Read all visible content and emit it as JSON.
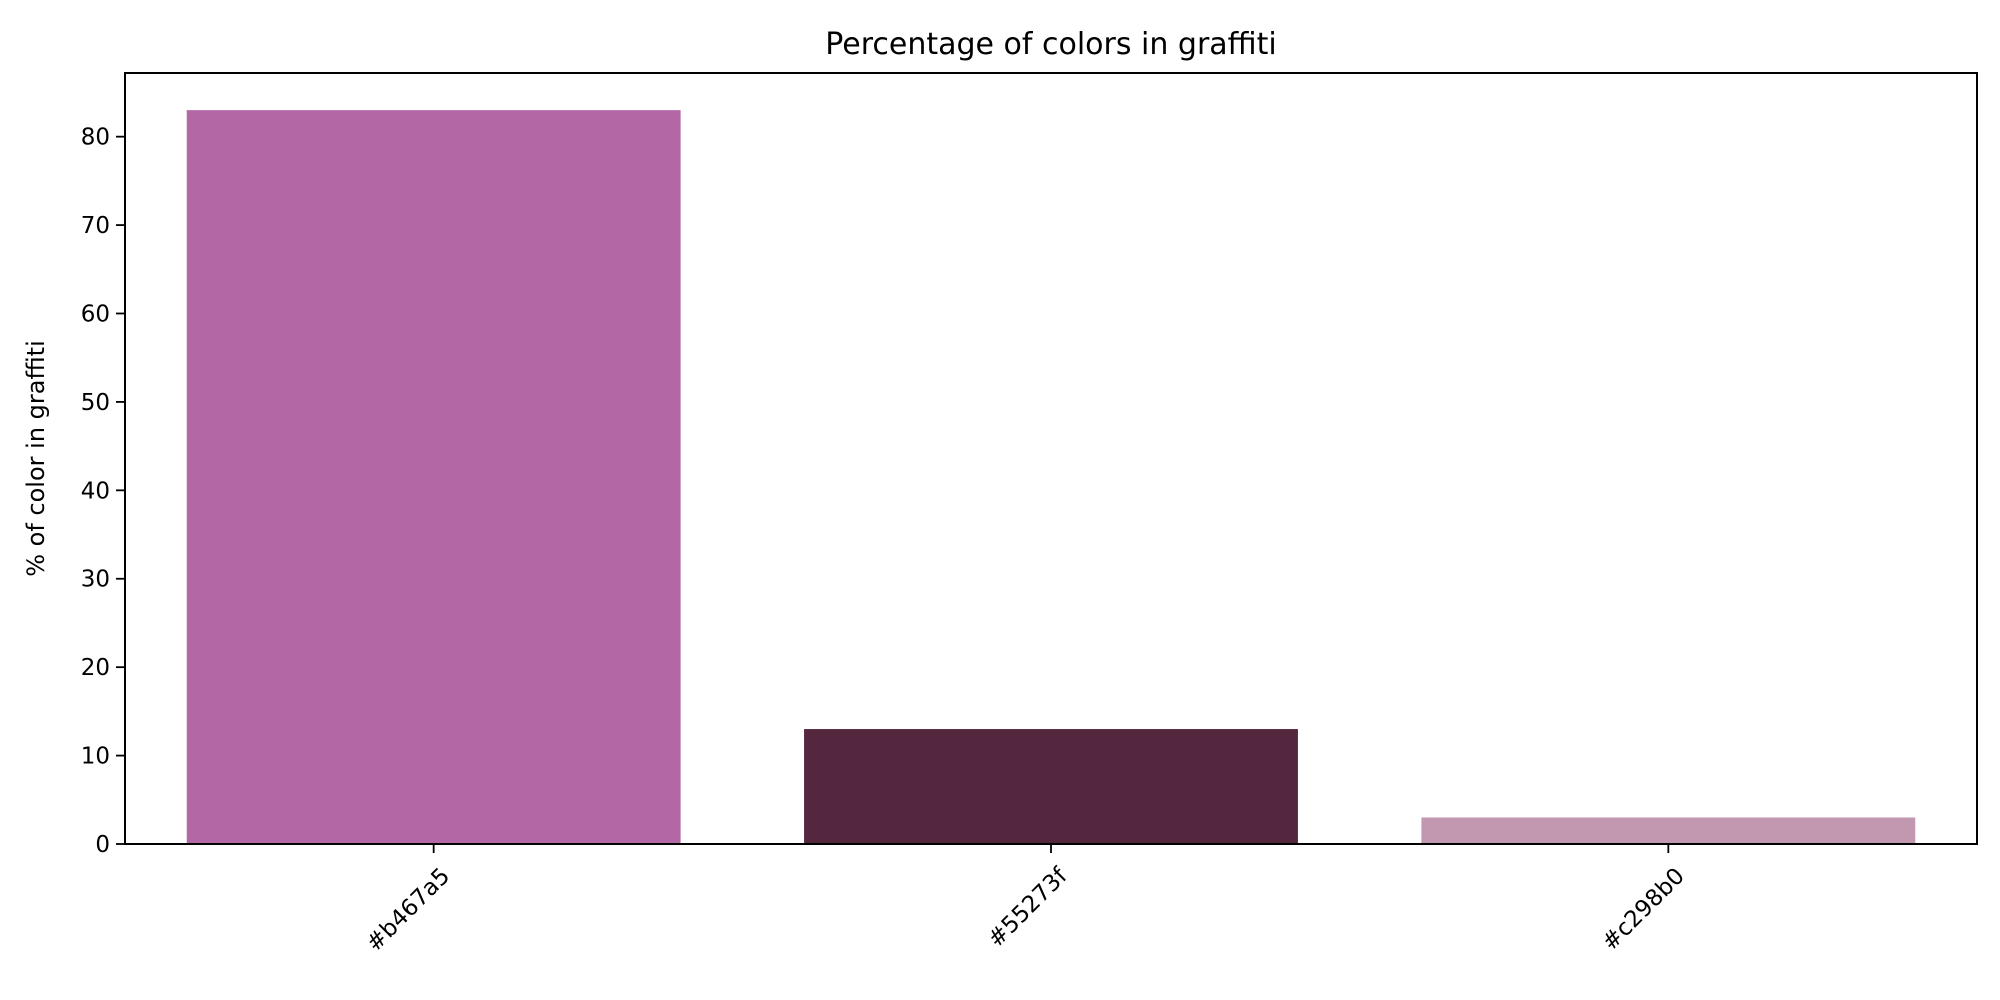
{
  "chart_data": {
    "type": "bar",
    "title": "Percentage of colors in graffiti",
    "xlabel": "",
    "ylabel": "% of color in graffiti",
    "categories": [
      "#b467a5",
      "#55273f",
      "#c298b0"
    ],
    "values": [
      83,
      13,
      3
    ],
    "colors": [
      "#b467a5",
      "#55273f",
      "#c298b0"
    ],
    "ylim": [
      0,
      87.2
    ],
    "yticks": [
      0,
      10,
      20,
      30,
      40,
      50,
      60,
      70,
      80
    ],
    "grid": false,
    "xtick_rotation_deg": 45
  }
}
